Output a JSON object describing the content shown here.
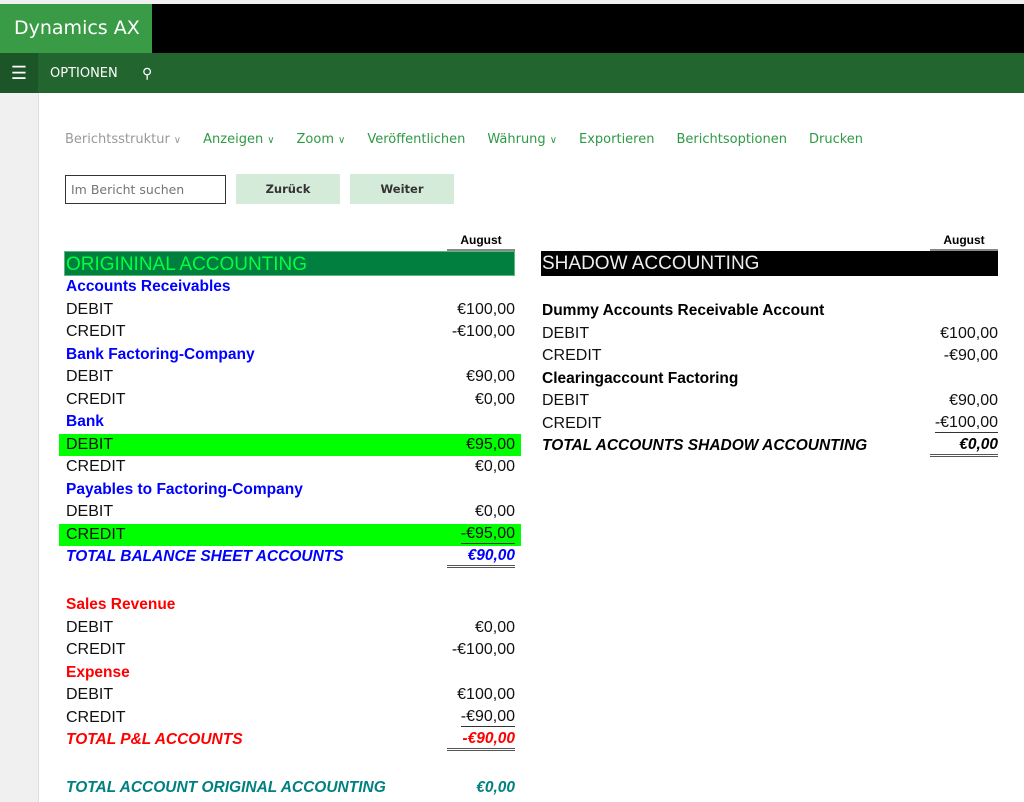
{
  "app": {
    "title": "Dynamics AX",
    "nav_label": "OPTIONEN",
    "menu_icon": "hamburger-icon",
    "search_icon": "search-icon"
  },
  "toolbar": [
    {
      "label": "Berichtsstruktur",
      "dropdown": true,
      "disabled": true
    },
    {
      "label": "Anzeigen",
      "dropdown": true
    },
    {
      "label": "Zoom",
      "dropdown": true
    },
    {
      "label": "Veröffentlichen"
    },
    {
      "label": "Währung",
      "dropdown": true
    },
    {
      "label": "Exportieren"
    },
    {
      "label": "Berichtsoptionen"
    },
    {
      "label": "Drucken"
    }
  ],
  "search": {
    "placeholder": "Im Bericht suchen",
    "back": "Zurück",
    "next": "Weiter"
  },
  "colors": {
    "green": "#2e9a46",
    "highlight": "#00ff00",
    "blue": "#0000ff",
    "red": "#ff0000",
    "teal": "#008080"
  },
  "original": {
    "column": "August",
    "title": "ORIGININAL ACCOUNTING",
    "rows": [
      {
        "type": "acct",
        "label": "Accounts Receivables",
        "color": "#0000ff"
      },
      {
        "label": "DEBIT",
        "value": "€100,00"
      },
      {
        "label": "CREDIT",
        "value": "-€100,00"
      },
      {
        "type": "acct",
        "label": "Bank Factoring-Company",
        "color": "#0000ff"
      },
      {
        "label": "DEBIT",
        "value": "€90,00"
      },
      {
        "label": "CREDIT",
        "value": "€0,00"
      },
      {
        "type": "acct",
        "label": "Bank",
        "color": "#0000ff"
      },
      {
        "label": "DEBIT",
        "value": "€95,00",
        "highlight": true
      },
      {
        "label": "CREDIT",
        "value": "€0,00"
      },
      {
        "type": "acct",
        "label": "Payables to Factoring-Company",
        "color": "#0000ff"
      },
      {
        "label": "DEBIT",
        "value": "€0,00"
      },
      {
        "label": "CREDIT",
        "value": "-€95,00",
        "highlight": true,
        "underline": "single"
      },
      {
        "type": "total",
        "label": "TOTAL BALANCE SHEET ACCOUNTS",
        "value": "€90,00",
        "color": "#0000ff",
        "underline": "double"
      },
      {
        "type": "acct",
        "label": "Sales Revenue",
        "color": "#ff0000",
        "gap": true
      },
      {
        "label": "DEBIT",
        "value": "€0,00"
      },
      {
        "label": "CREDIT",
        "value": "-€100,00"
      },
      {
        "type": "acct",
        "label": "Expense",
        "color": "#ff0000"
      },
      {
        "label": "DEBIT",
        "value": "€100,00"
      },
      {
        "label": "CREDIT",
        "value": "-€90,00",
        "underline": "single"
      },
      {
        "type": "total",
        "label": "TOTAL P&L ACCOUNTS",
        "value": "-€90,00",
        "color": "#ff0000",
        "underline": "double"
      },
      {
        "type": "total",
        "label": "TOTAL ACCOUNT ORIGINAL ACCOUNTING",
        "value": "€0,00",
        "color": "#008080",
        "gap": true
      }
    ]
  },
  "shadow": {
    "column": "August",
    "title": "SHADOW ACCOUNTING",
    "rows": [
      {
        "type": "acct",
        "label": "Dummy Accounts Receivable Account",
        "color": "#000000",
        "gap": true
      },
      {
        "label": "DEBIT",
        "value": "€100,00"
      },
      {
        "label": "CREDIT",
        "value": "-€90,00"
      },
      {
        "type": "acct",
        "label": "Clearingaccount Factoring",
        "color": "#000000"
      },
      {
        "label": "DEBIT",
        "value": "€90,00"
      },
      {
        "label": "CREDIT",
        "value": "-€100,00",
        "underline": "single"
      },
      {
        "type": "total",
        "label": "TOTAL ACCOUNTS SHADOW ACCOUNTING",
        "value": "€0,00",
        "color": "#000000",
        "underline": "double"
      }
    ]
  }
}
